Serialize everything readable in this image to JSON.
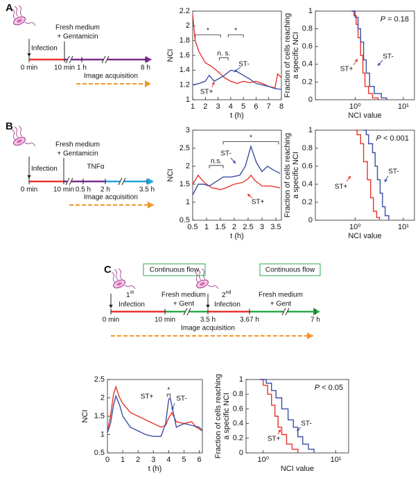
{
  "panels": [
    {
      "label": "A",
      "timeline": {
        "medium": [
          "Fresh medium",
          "+ Gentamicin"
        ],
        "infection": "Infection",
        "ticks": [
          "0 min",
          "10 min",
          "1 h",
          "8 h"
        ],
        "acquisition": "Image acquisition"
      }
    },
    {
      "label": "B",
      "timeline": {
        "medium": [
          "Fresh medium",
          "+ Gentamicin"
        ],
        "infection": "Infection",
        "treatment": "TNFα",
        "ticks": [
          "0 min",
          "10 min",
          "0.5 h",
          "2 h",
          "3.5 h"
        ],
        "acquisition": "Image acquisition"
      }
    },
    {
      "label": "C",
      "timeline": {
        "flow": [
          "Continuous flow",
          "Continuous flow"
        ],
        "infections": [
          {
            "ordinal": "1",
            "suffix": "st",
            "text": "Infection"
          },
          {
            "ordinal": "2",
            "suffix": "nd",
            "text": "Infection"
          }
        ],
        "medium": [
          [
            "Fresh medium",
            "+ Gent"
          ],
          [
            "Fresh medium",
            "+ Gent"
          ]
        ],
        "ticks": [
          "0 min",
          "10 min",
          "3.5 h",
          "3.67 h",
          "7 h"
        ],
        "acquisition": "Image acquisition"
      }
    }
  ],
  "chart_data": [
    {
      "type": "line",
      "xlabel": "t (h)",
      "ylabel": "NCI",
      "xlim": [
        1,
        8
      ],
      "ylim": [
        1,
        2.2
      ],
      "xticks": [
        1,
        2,
        3,
        4,
        5,
        6,
        7,
        8
      ],
      "yticks": [
        1,
        1.2,
        1.4,
        1.6,
        1.8,
        2,
        2.2
      ],
      "annotations": [
        "*",
        "n. s.",
        "*"
      ],
      "series": [
        {
          "name": "ST+",
          "color": "#e8332a",
          "x": [
            1,
            1.2,
            1.5,
            2,
            2.5,
            3,
            3.5,
            4,
            4.5,
            5,
            5.5,
            6,
            6.5,
            7,
            7.5,
            7.7,
            8
          ],
          "values": [
            2.15,
            1.8,
            1.65,
            1.5,
            1.45,
            1.38,
            1.3,
            1.25,
            1.22,
            1.25,
            1.23,
            1.25,
            1.22,
            1.18,
            1.16,
            1.35,
            1.3
          ]
        },
        {
          "name": "ST-",
          "color": "#3a4ea0",
          "x": [
            1,
            1.5,
            2,
            2.3,
            2.7,
            3,
            3.5,
            4,
            4.5,
            5,
            5.5,
            6,
            6.5,
            7,
            7.5,
            8
          ],
          "values": [
            1.2,
            1.22,
            1.25,
            1.33,
            1.25,
            1.28,
            1.33,
            1.4,
            1.38,
            1.33,
            1.28,
            1.22,
            1.2,
            1.18,
            1.15,
            1.14
          ]
        }
      ]
    },
    {
      "type": "step",
      "xlabel": "NCI value",
      "ylabel": [
        "Fraction of cells reaching",
        "a specific NCI"
      ],
      "xscale": "log",
      "xlim": [
        0.15,
        17
      ],
      "ylim": [
        0,
        1
      ],
      "xticks": [
        {
          "value": 1,
          "label": "10⁰"
        },
        {
          "value": 10,
          "label": "10¹"
        }
      ],
      "yticks": [
        0,
        0.2,
        0.4,
        0.6,
        0.8,
        1
      ],
      "p_value": {
        "symbol": "P",
        "text": "= 0.18"
      },
      "series": [
        {
          "name": "ST+",
          "color": "#e8332a",
          "x": [
            0.85,
            0.95,
            1.05,
            1.15,
            1.3,
            1.45,
            1.6,
            1.9,
            2.3,
            3
          ],
          "values": [
            1,
            0.95,
            0.85,
            0.7,
            0.5,
            0.3,
            0.15,
            0.07,
            0.02,
            0
          ]
        },
        {
          "name": "ST-",
          "color": "#3a4ea0",
          "x": [
            0.85,
            1,
            1.15,
            1.3,
            1.5,
            1.7,
            2,
            2.5,
            3.5,
            4.5
          ],
          "values": [
            1,
            0.93,
            0.8,
            0.65,
            0.45,
            0.3,
            0.15,
            0.07,
            0.02,
            0
          ]
        }
      ]
    },
    {
      "type": "line",
      "xlabel": "t (h)",
      "ylabel": "NCI",
      "xlim": [
        0.5,
        3.7
      ],
      "ylim": [
        0.5,
        3
      ],
      "xticks": [
        0.5,
        1,
        1.5,
        2,
        2.5,
        3,
        3.5
      ],
      "yticks": [
        0.5,
        1,
        1.5,
        2,
        2.5,
        3
      ],
      "annotations": [
        "n.s.",
        "*"
      ],
      "series": [
        {
          "name": "ST+",
          "color": "#e8332a",
          "x": [
            0.5,
            0.7,
            0.85,
            1,
            1.2,
            1.5,
            1.7,
            2,
            2.3,
            2.5,
            2.6,
            2.75,
            3,
            3.3,
            3.65
          ],
          "values": [
            1.5,
            1.75,
            1.6,
            1.5,
            1.4,
            1.35,
            1.4,
            1.5,
            1.55,
            1.65,
            1.75,
            1.6,
            1.45,
            1.45,
            1.4
          ]
        },
        {
          "name": "ST-",
          "color": "#3a4ea0",
          "x": [
            0.5,
            0.7,
            0.9,
            1.1,
            1.3,
            1.6,
            1.9,
            2.2,
            2.4,
            2.6,
            2.8,
            3,
            3.2,
            3.4,
            3.65
          ],
          "values": [
            1.2,
            1.5,
            1.5,
            1.45,
            1.55,
            1.7,
            1.7,
            1.75,
            2,
            2.55,
            2.1,
            1.85,
            2,
            1.9,
            1.8
          ]
        }
      ]
    },
    {
      "type": "step",
      "xlabel": "NCI value",
      "ylabel": [
        "Fraction of cells reaching",
        "a specific NCI"
      ],
      "xscale": "log",
      "xlim": [
        0.15,
        17
      ],
      "ylim": [
        0,
        1
      ],
      "xticks": [
        {
          "value": 1,
          "label": "10⁰"
        },
        {
          "value": 10,
          "label": "10¹"
        }
      ],
      "yticks": [
        0,
        0.2,
        0.4,
        0.6,
        0.8,
        1
      ],
      "p_value": {
        "symbol": "P",
        "text": "< 0.001"
      },
      "series": [
        {
          "name": "ST+",
          "color": "#e8332a",
          "x": [
            1,
            1.1,
            1.3,
            1.5,
            1.8,
            2.1,
            2.4,
            2.8,
            3.2
          ],
          "values": [
            1,
            0.95,
            0.85,
            0.65,
            0.45,
            0.25,
            0.1,
            0.03,
            0
          ]
        },
        {
          "name": "ST-",
          "color": "#3a4ea0",
          "x": [
            1.5,
            1.7,
            1.9,
            2.3,
            2.6,
            2.9,
            3.3,
            3.7,
            4.2,
            5
          ],
          "values": [
            1,
            0.95,
            0.85,
            0.75,
            0.6,
            0.45,
            0.3,
            0.15,
            0.05,
            0
          ]
        }
      ]
    },
    {
      "type": "line",
      "xlabel": "t (h)",
      "ylabel": "NCI",
      "xlim": [
        0,
        6.2
      ],
      "ylim": [
        0.5,
        2.5
      ],
      "xticks": [
        0,
        1,
        2,
        3,
        4,
        5,
        6
      ],
      "yticks": [
        0.5,
        1,
        1.5,
        2,
        2.5
      ],
      "annotations": [
        "*"
      ],
      "series": [
        {
          "name": "ST+",
          "color": "#e8332a",
          "x": [
            0,
            0.2,
            0.4,
            0.55,
            0.8,
            1,
            1.5,
            2,
            2.5,
            3,
            3.5,
            3.8,
            4,
            4.2,
            4.5,
            5,
            5.5,
            5.8,
            6.2
          ],
          "values": [
            1.1,
            1.5,
            2.1,
            2.3,
            2,
            1.85,
            1.6,
            1.5,
            1.4,
            1.3,
            1.2,
            1.25,
            1.45,
            1.6,
            1.35,
            1.3,
            1.35,
            1.2,
            1.1
          ]
        },
        {
          "name": "ST-",
          "color": "#3a4ea0",
          "x": [
            0,
            0.2,
            0.4,
            0.55,
            0.8,
            1,
            1.5,
            2,
            2.5,
            3,
            3.5,
            3.8,
            4,
            4.1,
            4.3,
            4.5,
            5,
            5.5,
            6,
            6.2
          ],
          "values": [
            1.05,
            1.3,
            1.8,
            2.05,
            1.8,
            1.5,
            1.2,
            1.1,
            1,
            0.95,
            0.95,
            1.3,
            1.95,
            2,
            1.6,
            1.2,
            1.3,
            1.25,
            1.2,
            1.1
          ]
        }
      ]
    },
    {
      "type": "step",
      "xlabel": "NCI value",
      "ylabel": [
        "Fraction of cells reaching",
        "a specific NCI"
      ],
      "xscale": "log",
      "xlim": [
        0.58,
        15
      ],
      "ylim": [
        0,
        1
      ],
      "xticks": [
        {
          "value": 1,
          "label": "10⁰"
        },
        {
          "value": 10,
          "label": "10¹"
        }
      ],
      "yticks": [
        0,
        0.2,
        0.4,
        0.6,
        0.8,
        1
      ],
      "p_value": {
        "symbol": "P",
        "text": "< 0.05"
      },
      "series": [
        {
          "name": "ST+",
          "color": "#e8332a",
          "x": [
            0.9,
            1,
            1.15,
            1.3,
            1.45,
            1.6,
            1.8,
            2.1,
            2.5,
            3
          ],
          "values": [
            1,
            0.92,
            0.8,
            0.65,
            0.5,
            0.35,
            0.25,
            0.12,
            0.05,
            0
          ]
        },
        {
          "name": "ST-",
          "color": "#3a4ea0",
          "x": [
            0.9,
            1.1,
            1.3,
            1.5,
            1.8,
            2.2,
            2.6,
            3,
            3.5,
            4.2,
            5
          ],
          "values": [
            1,
            0.95,
            0.85,
            0.75,
            0.6,
            0.45,
            0.35,
            0.22,
            0.12,
            0.05,
            0
          ]
        }
      ]
    }
  ]
}
